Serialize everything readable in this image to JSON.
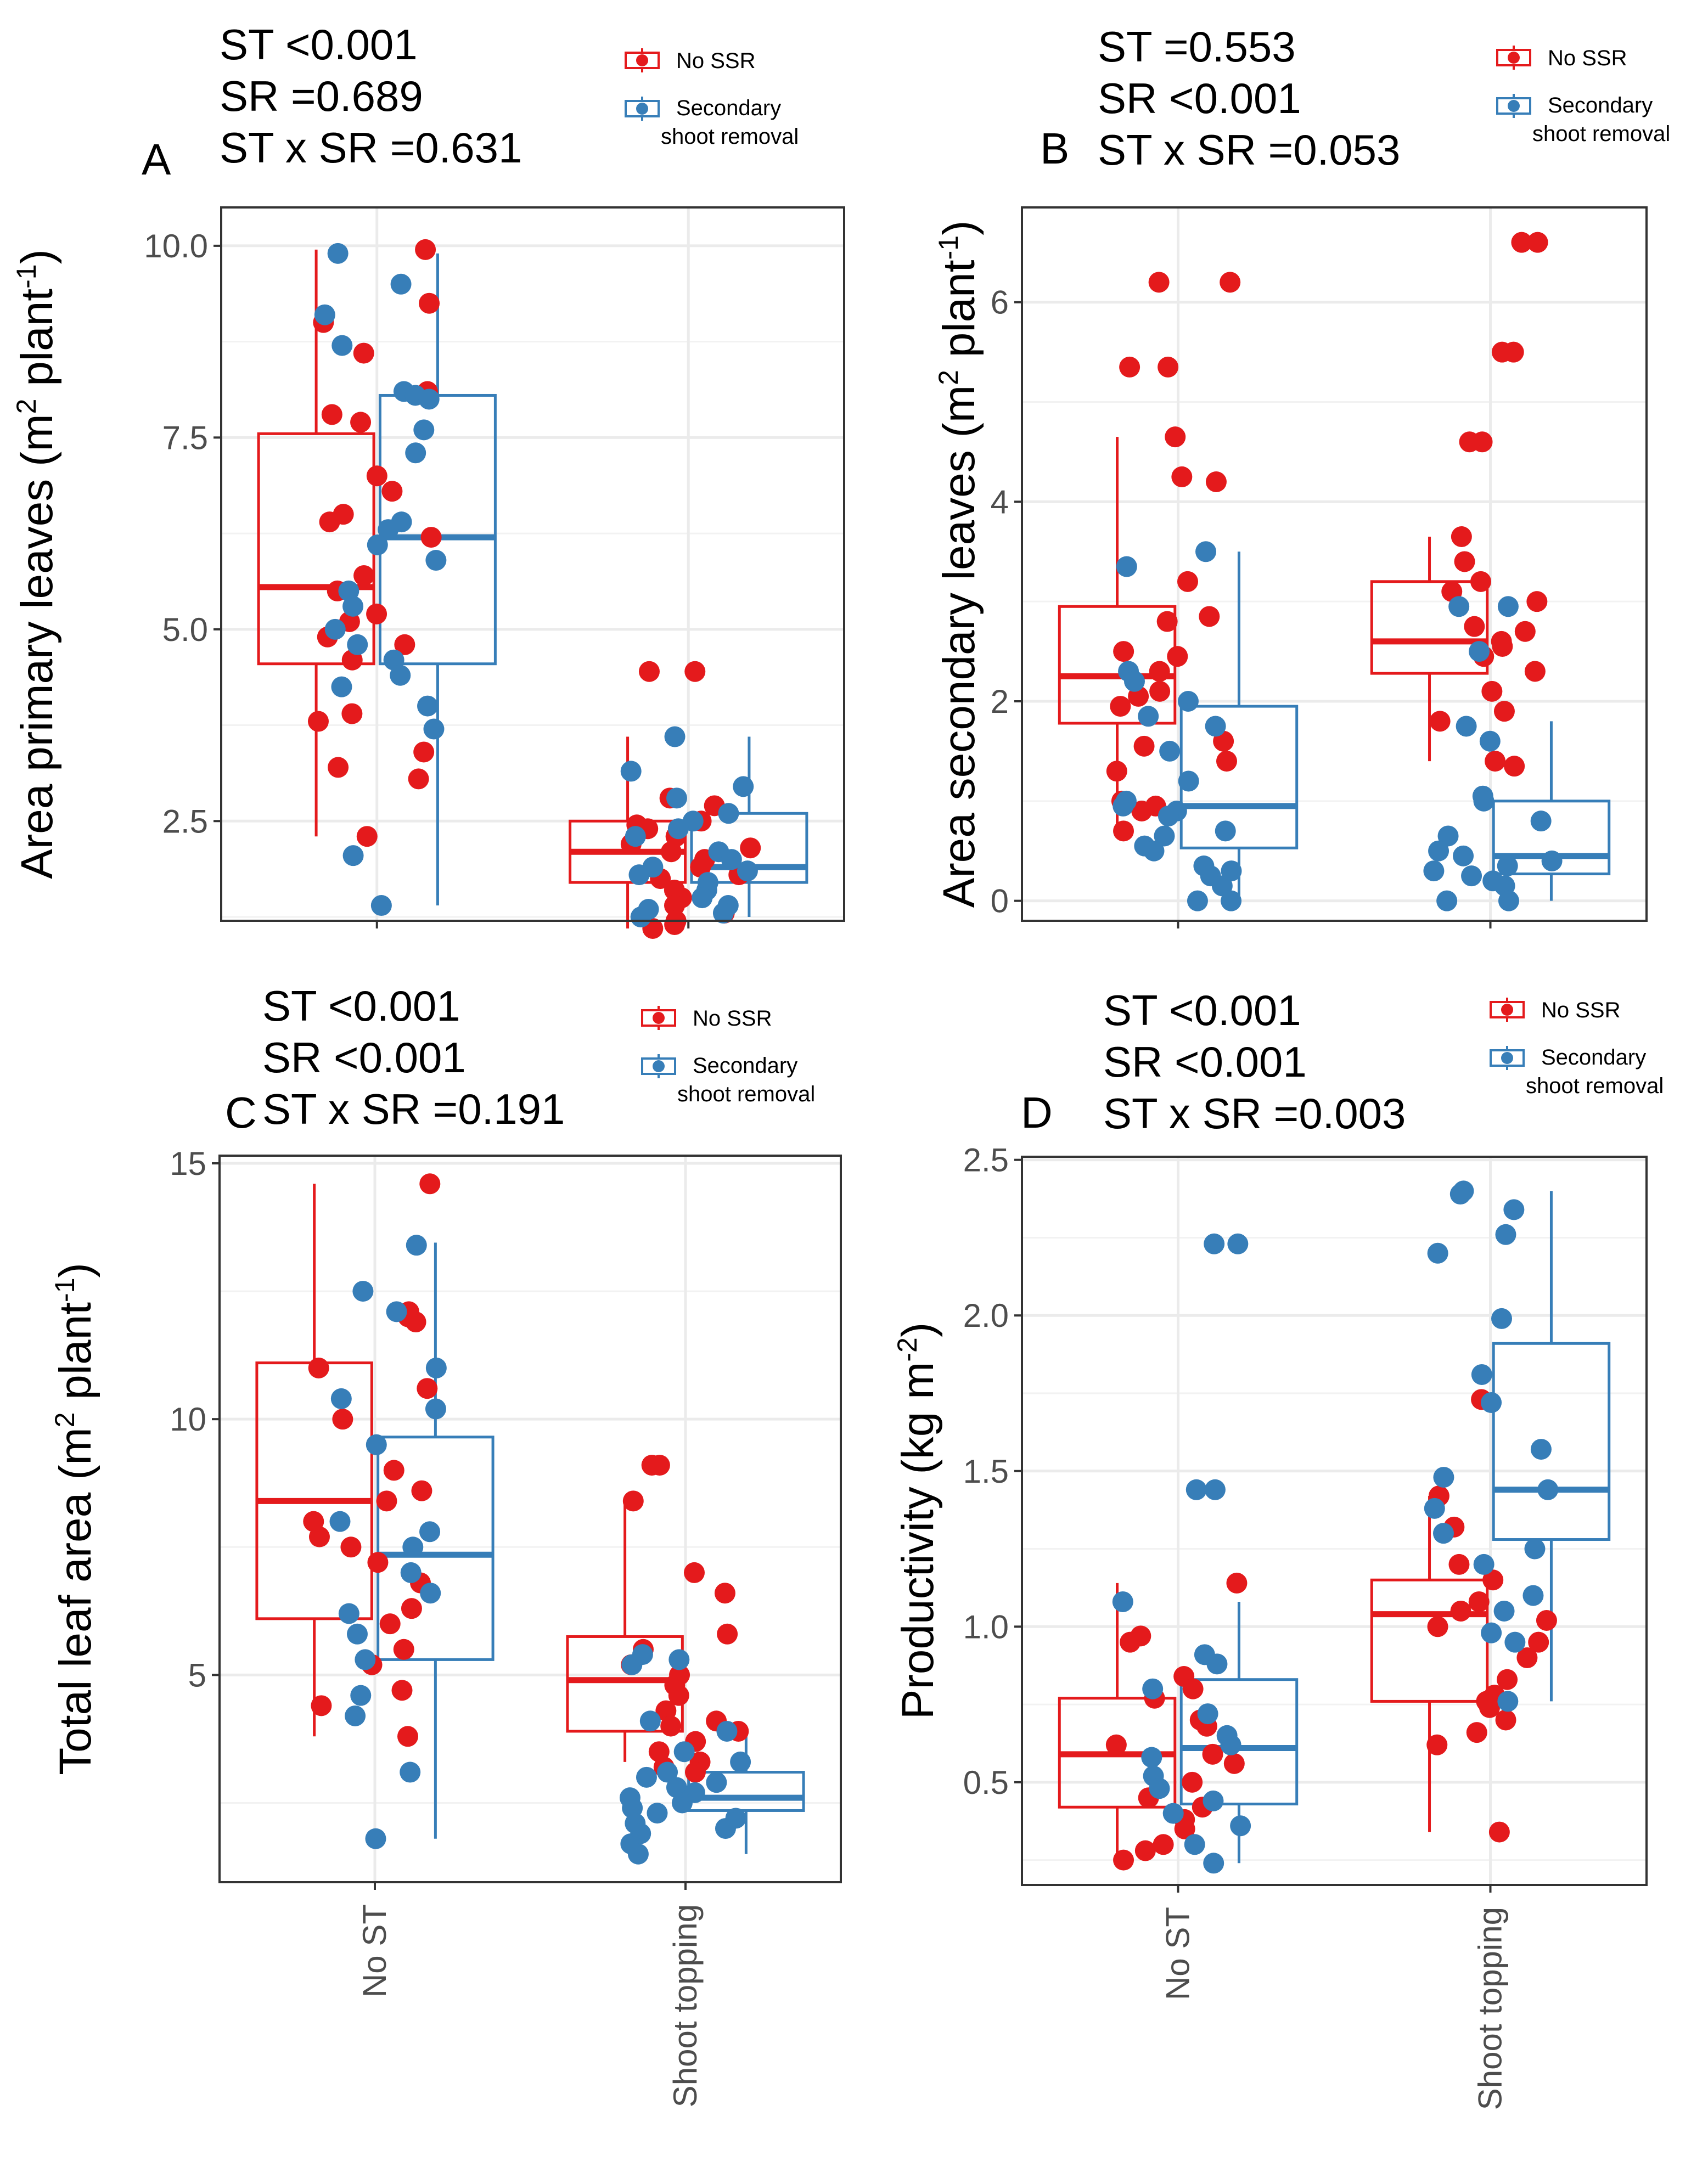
{
  "colors": {
    "nossr": "#E41A1C",
    "ssr": "#377EB8",
    "grid": "#EBEBEB",
    "axis": "#333333",
    "tick_text": "#4D4D4D"
  },
  "x_categories": [
    "No ST",
    "Shoot topping"
  ],
  "legend": {
    "no_ssr": "No SSR",
    "ssr_line1": "Secondary",
    "ssr_line2": "shoot removal"
  },
  "chart_data": [
    {
      "panel": "A",
      "type": "boxplot",
      "ylabel_pre": "Area primary leaves (m",
      "ylabel_sup1": "2",
      "ylabel_mid": " plant",
      "ylabel_sup2": "-1",
      "ylabel_post": ")",
      "ylim": [
        1.2,
        10.5
      ],
      "yticks": [
        2.5,
        5.0,
        7.5,
        10.0
      ],
      "ytick_labels": [
        "2.5",
        "5.0",
        "7.5",
        "10.0"
      ],
      "stats": [
        {
          "label": "ST ",
          "p": "<0.001"
        },
        {
          "label": "SR ",
          "p": "=0.689"
        },
        {
          "label": "ST x SR  ",
          "p": "=0.631"
        }
      ],
      "categories": [
        "No ST",
        "Shoot topping"
      ],
      "series": [
        {
          "name": "No SSR",
          "boxes": [
            {
              "min": 2.3,
              "q1": 4.55,
              "median": 5.55,
              "q3": 7.55,
              "max": 9.95
            },
            {
              "min": 1.1,
              "q1": 1.7,
              "median": 2.1,
              "q3": 2.5,
              "max": 3.6
            }
          ],
          "points": [
            [
              9.95,
              9.25,
              9.0,
              8.6,
              8.1,
              7.8,
              7.7,
              7.0,
              6.8,
              6.5,
              6.4,
              6.2,
              5.7,
              5.5,
              5.2,
              5.1,
              4.9,
              4.8,
              4.6,
              3.9,
              3.8,
              3.4,
              3.2,
              3.05,
              2.3
            ],
            [
              4.45,
              4.45,
              2.8,
              2.7,
              2.5,
              2.45,
              2.4,
              2.3,
              2.2,
              2.15,
              2.1,
              2.0,
              1.9,
              1.8,
              1.75,
              1.6,
              1.5,
              1.4,
              1.3,
              1.2,
              1.15,
              1.1
            ]
          ]
        },
        {
          "name": "Secondary shoot removal",
          "boxes": [
            {
              "min": 1.4,
              "q1": 4.55,
              "median": 6.2,
              "q3": 8.05,
              "max": 9.9
            },
            {
              "min": 1.25,
              "q1": 1.7,
              "median": 1.9,
              "q3": 2.6,
              "max": 3.6
            }
          ],
          "points": [
            [
              9.9,
              9.5,
              9.1,
              8.7,
              8.1,
              8.05,
              8.0,
              7.6,
              7.3,
              6.4,
              6.3,
              6.1,
              5.9,
              5.5,
              5.3,
              5.0,
              4.8,
              4.6,
              4.4,
              4.25,
              4.0,
              3.7,
              2.05,
              1.4
            ],
            [
              3.6,
              3.15,
              2.95,
              2.8,
              2.6,
              2.5,
              2.4,
              2.3,
              2.1,
              2.0,
              1.9,
              1.85,
              1.8,
              1.7,
              1.6,
              1.5,
              1.4,
              1.35,
              1.3,
              1.25
            ]
          ]
        }
      ]
    },
    {
      "panel": "B",
      "type": "boxplot",
      "ylabel_pre": "Area secondary leaves (m",
      "ylabel_sup1": "2",
      "ylabel_mid": " plant",
      "ylabel_sup2": "-1",
      "ylabel_post": ")",
      "ylim": [
        -0.2,
        6.95
      ],
      "yticks": [
        0,
        2,
        4,
        6
      ],
      "ytick_labels": [
        "0",
        "2",
        "4",
        "6"
      ],
      "stats": [
        {
          "label": "ST ",
          "p": "=0.553"
        },
        {
          "label": "SR ",
          "p": "<0.001"
        },
        {
          "label": "ST x SR  ",
          "p": "=0.053"
        }
      ],
      "categories": [
        "No ST",
        "Shoot topping"
      ],
      "series": [
        {
          "name": "No SSR",
          "boxes": [
            {
              "min": 0.7,
              "q1": 1.78,
              "median": 2.25,
              "q3": 2.95,
              "max": 4.65
            },
            {
              "min": 1.4,
              "q1": 2.28,
              "median": 2.6,
              "q3": 3.2,
              "max": 3.65
            }
          ],
          "points": [
            [
              6.2,
              6.2,
              5.35,
              5.35,
              4.65,
              4.25,
              4.2,
              3.2,
              2.85,
              2.8,
              2.5,
              2.45,
              2.3,
              2.1,
              2.05,
              1.95,
              1.6,
              1.55,
              1.4,
              1.3,
              1.0,
              0.95,
              0.9,
              0.7
            ],
            [
              6.6,
              6.6,
              5.5,
              5.5,
              4.6,
              4.6,
              3.65,
              3.4,
              3.2,
              3.1,
              3.0,
              2.75,
              2.7,
              2.6,
              2.55,
              2.45,
              2.3,
              2.1,
              1.9,
              1.8,
              1.4,
              1.35
            ]
          ]
        },
        {
          "name": "Secondary shoot removal",
          "boxes": [
            {
              "min": 0.0,
              "q1": 0.53,
              "median": 0.95,
              "q3": 1.95,
              "max": 3.5
            },
            {
              "min": 0.0,
              "q1": 0.27,
              "median": 0.45,
              "q3": 1.0,
              "max": 1.8
            }
          ],
          "points": [
            [
              3.5,
              3.35,
              2.3,
              2.2,
              2.0,
              1.85,
              1.75,
              1.5,
              1.2,
              1.0,
              0.95,
              0.9,
              0.85,
              0.7,
              0.65,
              0.55,
              0.5,
              0.35,
              0.3,
              0.25,
              0.15,
              0.0,
              0.0
            ],
            [
              2.95,
              2.95,
              2.5,
              1.75,
              1.6,
              1.05,
              1.0,
              0.8,
              0.65,
              0.5,
              0.45,
              0.4,
              0.35,
              0.3,
              0.25,
              0.2,
              0.15,
              0.0,
              0.0
            ]
          ]
        }
      ]
    },
    {
      "panel": "C",
      "type": "boxplot",
      "ylabel_pre": "Total leaf area (m",
      "ylabel_sup1": "2",
      "ylabel_mid": " plant",
      "ylabel_sup2": "-1",
      "ylabel_post": ")",
      "ylim": [
        0.95,
        15.15
      ],
      "yticks": [
        5,
        10,
        15
      ],
      "ytick_labels": [
        "5",
        "10",
        "15"
      ],
      "stats": [
        {
          "label": "ST ",
          "p": "<0.001"
        },
        {
          "label": "SR ",
          "p": "<0.001"
        },
        {
          "label": "ST x SR  ",
          "p": "=0.191"
        }
      ],
      "categories": [
        "No ST",
        "Shoot topping"
      ],
      "series": [
        {
          "name": "No SSR",
          "boxes": [
            {
              "min": 3.8,
              "q1": 6.1,
              "median": 8.4,
              "q3": 11.1,
              "max": 14.6
            },
            {
              "min": 3.3,
              "q1": 3.9,
              "median": 4.9,
              "q3": 5.75,
              "max": 8.4
            }
          ],
          "points": [
            [
              14.6,
              12.1,
              12.0,
              11.9,
              11.0,
              10.6,
              10.0,
              9.0,
              8.6,
              8.4,
              8.0,
              7.7,
              7.5,
              7.2,
              6.8,
              6.3,
              6.0,
              5.5,
              5.2,
              4.7,
              4.4,
              3.8
            ],
            [
              9.1,
              9.1,
              8.4,
              7.0,
              6.6,
              5.8,
              5.5,
              5.2,
              5.0,
              4.8,
              4.6,
              4.3,
              4.1,
              4.0,
              3.9,
              3.7,
              3.5,
              3.3,
              3.2,
              3.1
            ]
          ]
        },
        {
          "name": "Secondary shoot removal",
          "boxes": [
            {
              "min": 1.8,
              "q1": 5.3,
              "median": 7.35,
              "q3": 9.65,
              "max": 13.45
            },
            {
              "min": 1.5,
              "q1": 2.35,
              "median": 2.6,
              "q3": 3.1,
              "max": 3.9
            }
          ],
          "points": [
            [
              13.4,
              12.5,
              12.1,
              11.0,
              10.4,
              10.2,
              9.5,
              8.0,
              7.8,
              7.5,
              7.0,
              6.6,
              6.2,
              5.8,
              5.3,
              4.6,
              4.2,
              3.1,
              1.8
            ],
            [
              5.4,
              5.3,
              5.2,
              4.1,
              3.9,
              3.5,
              3.3,
              3.1,
              3.0,
              2.9,
              2.8,
              2.7,
              2.6,
              2.5,
              2.4,
              2.3,
              2.2,
              2.1,
              2.0,
              1.9,
              1.7,
              1.5
            ]
          ]
        }
      ]
    },
    {
      "panel": "D",
      "type": "boxplot",
      "ylabel_pre": "Productivity (kg m",
      "ylabel_sup1": "-2",
      "ylabel_mid": "",
      "ylabel_sup2": "",
      "ylabel_post": ")",
      "ylim": [
        0.17,
        2.51
      ],
      "yticks": [
        0.5,
        1.0,
        1.5,
        2.0,
        2.5
      ],
      "ytick_labels": [
        "0.5",
        "1.0",
        "1.5",
        "2.0",
        "2.5"
      ],
      "stats": [
        {
          "label": "ST ",
          "p": "<0.001"
        },
        {
          "label": "SR ",
          "p": "<0.001"
        },
        {
          "label": "ST x SR  ",
          "p": "=0.003"
        }
      ],
      "categories": [
        "No ST",
        "Shoot topping"
      ],
      "series": [
        {
          "name": "No SSR",
          "boxes": [
            {
              "min": 0.25,
              "q1": 0.42,
              "median": 0.59,
              "q3": 0.77,
              "max": 1.14
            },
            {
              "min": 0.34,
              "q1": 0.76,
              "median": 1.04,
              "q3": 1.15,
              "max": 1.42
            }
          ],
          "points": [
            [
              1.14,
              0.97,
              0.95,
              0.84,
              0.8,
              0.77,
              0.7,
              0.68,
              0.62,
              0.59,
              0.56,
              0.5,
              0.45,
              0.42,
              0.38,
              0.35,
              0.3,
              0.28,
              0.25
            ],
            [
              1.73,
              1.42,
              1.32,
              1.2,
              1.15,
              1.08,
              1.05,
              1.02,
              1.0,
              0.95,
              0.9,
              0.83,
              0.78,
              0.76,
              0.74,
              0.7,
              0.66,
              0.62,
              0.34
            ]
          ]
        },
        {
          "name": "Secondary shoot removal",
          "boxes": [
            {
              "min": 0.24,
              "q1": 0.43,
              "median": 0.61,
              "q3": 0.83,
              "max": 1.08
            },
            {
              "min": 0.76,
              "q1": 1.28,
              "median": 1.44,
              "q3": 1.91,
              "max": 2.4
            }
          ],
          "points": [
            [
              2.23,
              2.23,
              1.44,
              1.44,
              1.08,
              0.91,
              0.88,
              0.8,
              0.72,
              0.65,
              0.62,
              0.58,
              0.52,
              0.48,
              0.44,
              0.4,
              0.36,
              0.3,
              0.24
            ],
            [
              2.4,
              2.39,
              2.34,
              2.26,
              2.2,
              1.99,
              1.81,
              1.72,
              1.57,
              1.48,
              1.44,
              1.38,
              1.3,
              1.25,
              1.2,
              1.1,
              1.05,
              0.98,
              0.95,
              0.76
            ]
          ]
        }
      ]
    }
  ]
}
